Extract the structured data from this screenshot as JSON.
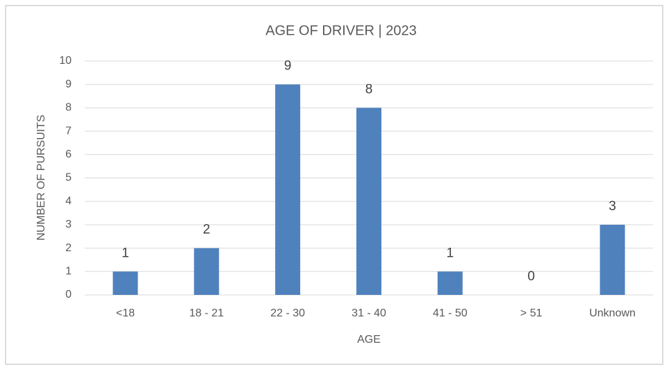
{
  "chart_data": {
    "type": "bar",
    "title": "AGE OF DRIVER | 2023",
    "x_label": "AGE",
    "y_label": "NUMBER OF PURSUITS",
    "categories": [
      "<18",
      "18 - 21",
      "22 - 30",
      "31 - 40",
      "41 - 50",
      "> 51",
      "Unknown"
    ],
    "values": [
      1,
      2,
      9,
      8,
      1,
      0,
      3
    ],
    "color": "#4f81bd",
    "ylim": [
      0,
      10
    ],
    "yticks": [
      0,
      1,
      2,
      3,
      4,
      5,
      6,
      7,
      8,
      9,
      10
    ],
    "grid": true
  }
}
